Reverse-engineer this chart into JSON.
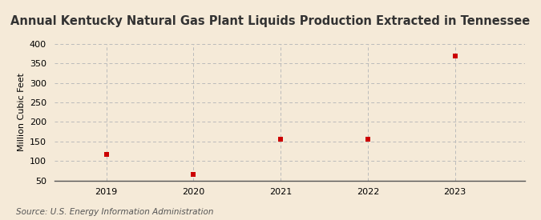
{
  "title": "Annual Kentucky Natural Gas Plant Liquids Production Extracted in Tennessee",
  "ylabel": "Million Cubic Feet",
  "source": "Source: U.S. Energy Information Administration",
  "years": [
    2019,
    2020,
    2021,
    2022,
    2023
  ],
  "values": [
    117,
    65,
    155,
    155,
    370
  ],
  "marker_color": "#cc0000",
  "marker_size": 5,
  "marker_style": "s",
  "ylim": [
    50,
    400
  ],
  "yticks": [
    50,
    100,
    150,
    200,
    250,
    300,
    350,
    400
  ],
  "xlim": [
    2018.4,
    2023.8
  ],
  "background_color": "#f5ead8",
  "grid_color": "#bbbbbb",
  "title_fontsize": 10.5,
  "ylabel_fontsize": 8,
  "tick_fontsize": 8,
  "source_fontsize": 7.5
}
